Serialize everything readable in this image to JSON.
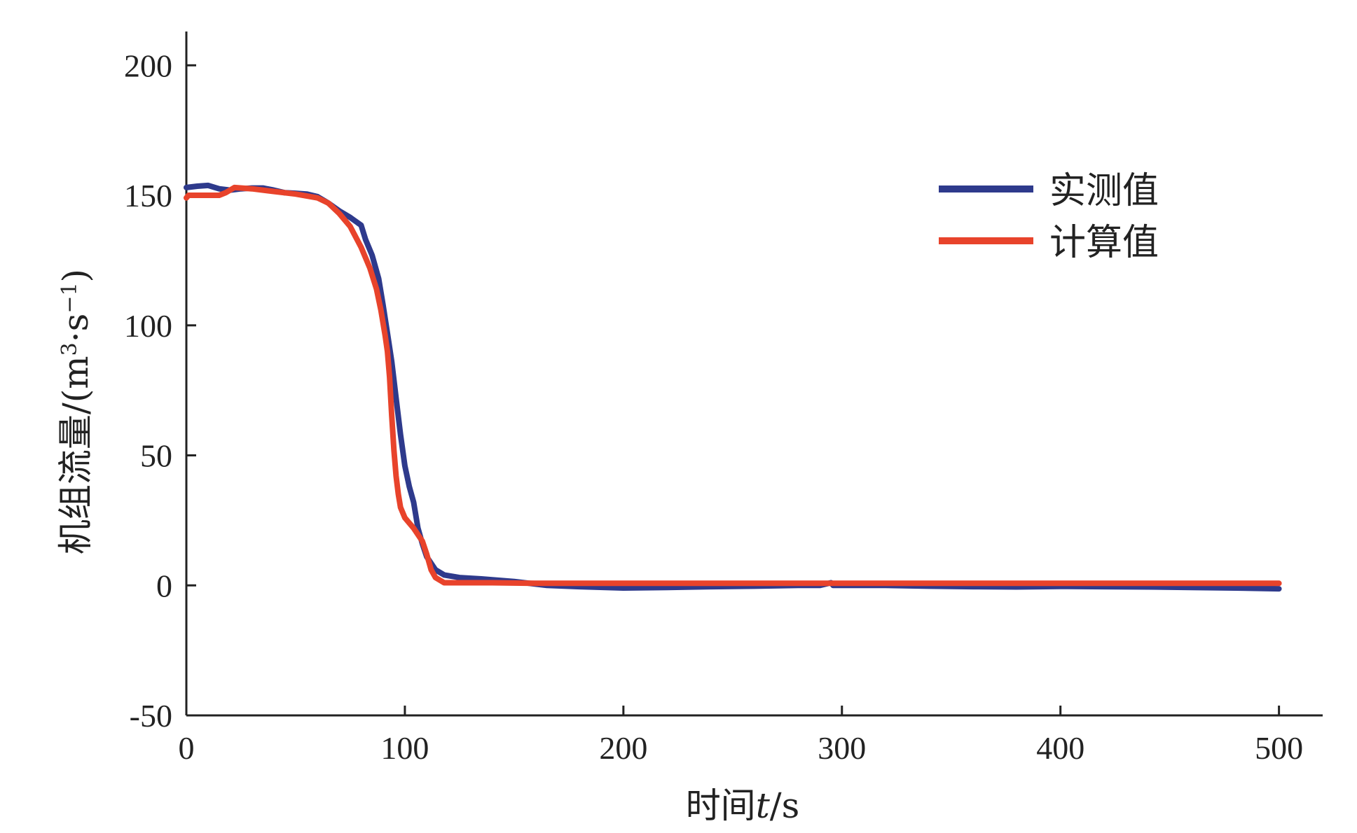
{
  "chart_data": {
    "type": "line",
    "xlabel": {
      "prefix": "时间",
      "italic": "t",
      "suffix": "/s"
    },
    "ylabel": {
      "prefix": "机组流量/(m",
      "sup1": "3",
      "mid": "·s",
      "sup2": "−1",
      "suffix": ")"
    },
    "xlim": [
      0,
      520
    ],
    "ylim": [
      -50,
      213
    ],
    "xticks": [
      0,
      100,
      200,
      300,
      400,
      500
    ],
    "yticks": [
      -50,
      0,
      50,
      100,
      150,
      200
    ],
    "xtick_labels": [
      "0",
      "100",
      "200",
      "300",
      "400",
      "500"
    ],
    "ytick_labels": [
      "-50",
      "0",
      "50",
      "100",
      "150",
      "200"
    ],
    "grid": false,
    "legend_position": "upper-right",
    "series": [
      {
        "name": "实测值",
        "color": "#2e3a8c",
        "points": [
          [
            0,
            153
          ],
          [
            5,
            153.5
          ],
          [
            10,
            153.8
          ],
          [
            15,
            152.5
          ],
          [
            20,
            152
          ],
          [
            25,
            152.5
          ],
          [
            30,
            152.8
          ],
          [
            35,
            152.8
          ],
          [
            40,
            152
          ],
          [
            45,
            151
          ],
          [
            50,
            150.8
          ],
          [
            55,
            150.5
          ],
          [
            60,
            149.5
          ],
          [
            65,
            147
          ],
          [
            70,
            144
          ],
          [
            75,
            141.5
          ],
          [
            80,
            138.5
          ],
          [
            82,
            133
          ],
          [
            85,
            127
          ],
          [
            88,
            118
          ],
          [
            90,
            108
          ],
          [
            92,
            97
          ],
          [
            94,
            86
          ],
          [
            96,
            72
          ],
          [
            98,
            58
          ],
          [
            100,
            46
          ],
          [
            102,
            38
          ],
          [
            104,
            32
          ],
          [
            106,
            22
          ],
          [
            108,
            16
          ],
          [
            110,
            11
          ],
          [
            114,
            6
          ],
          [
            118,
            4
          ],
          [
            125,
            3
          ],
          [
            135,
            2.5
          ],
          [
            150,
            1.5
          ],
          [
            165,
            0
          ],
          [
            180,
            -0.5
          ],
          [
            200,
            -1
          ],
          [
            220,
            -0.8
          ],
          [
            240,
            -0.5
          ],
          [
            260,
            -0.3
          ],
          [
            280,
            0
          ],
          [
            290,
            0
          ],
          [
            295,
            1
          ],
          [
            296,
            0
          ],
          [
            320,
            0
          ],
          [
            340,
            -0.3
          ],
          [
            360,
            -0.5
          ],
          [
            380,
            -0.6
          ],
          [
            400,
            -0.4
          ],
          [
            420,
            -0.5
          ],
          [
            440,
            -0.6
          ],
          [
            460,
            -0.8
          ],
          [
            480,
            -1
          ],
          [
            500,
            -1.3
          ]
        ]
      },
      {
        "name": "计算值",
        "color": "#e8432b",
        "points": [
          [
            0,
            149
          ],
          [
            1,
            150
          ],
          [
            5,
            150
          ],
          [
            10,
            150
          ],
          [
            15,
            150
          ],
          [
            18,
            151
          ],
          [
            22,
            153
          ],
          [
            30,
            152.5
          ],
          [
            40,
            151.5
          ],
          [
            50,
            150.5
          ],
          [
            60,
            149
          ],
          [
            65,
            147
          ],
          [
            70,
            143
          ],
          [
            75,
            138
          ],
          [
            80,
            130
          ],
          [
            84,
            122
          ],
          [
            87,
            114
          ],
          [
            89,
            106
          ],
          [
            91,
            96
          ],
          [
            92,
            90
          ],
          [
            93,
            80
          ],
          [
            94,
            65
          ],
          [
            95,
            52
          ],
          [
            96,
            42
          ],
          [
            97,
            35
          ],
          [
            98,
            30
          ],
          [
            100,
            26
          ],
          [
            104,
            22
          ],
          [
            108,
            17
          ],
          [
            110,
            12
          ],
          [
            112,
            6
          ],
          [
            114,
            3
          ],
          [
            118,
            1
          ],
          [
            125,
            1
          ],
          [
            140,
            1
          ],
          [
            160,
            0.8
          ],
          [
            200,
            0.8
          ],
          [
            300,
            0.8
          ],
          [
            400,
            0.8
          ],
          [
            500,
            0.8
          ]
        ]
      }
    ]
  }
}
